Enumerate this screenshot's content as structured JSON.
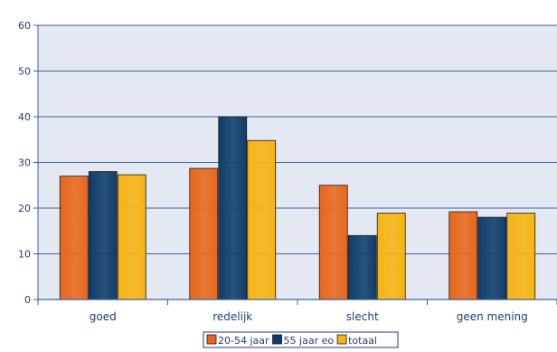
{
  "chart_data": {
    "type": "bar",
    "title": "",
    "xlabel": "",
    "ylabel": "",
    "categories": [
      "goed",
      "redelijk",
      "slecht",
      "geen mening"
    ],
    "series": [
      {
        "name": "20-54 jaar",
        "values": [
          27,
          28.7,
          25,
          19.2
        ],
        "color": "#E8671C"
      },
      {
        "name": "55 jaar eo",
        "values": [
          28,
          40,
          14,
          18
        ],
        "color": "#0F3D6B"
      },
      {
        "name": "totaal",
        "values": [
          27.3,
          34.8,
          18.9,
          18.9
        ],
        "color": "#F5B412"
      }
    ],
    "ylim": [
      0,
      60
    ],
    "yticks": [
      0,
      10,
      20,
      30,
      40,
      50,
      60
    ],
    "grid": true,
    "legend_position": "bottom",
    "colors": {
      "plot_background": "#E3E8F2",
      "gridline": "#3F5F9F",
      "axis_text": "#1F3D7A"
    }
  }
}
